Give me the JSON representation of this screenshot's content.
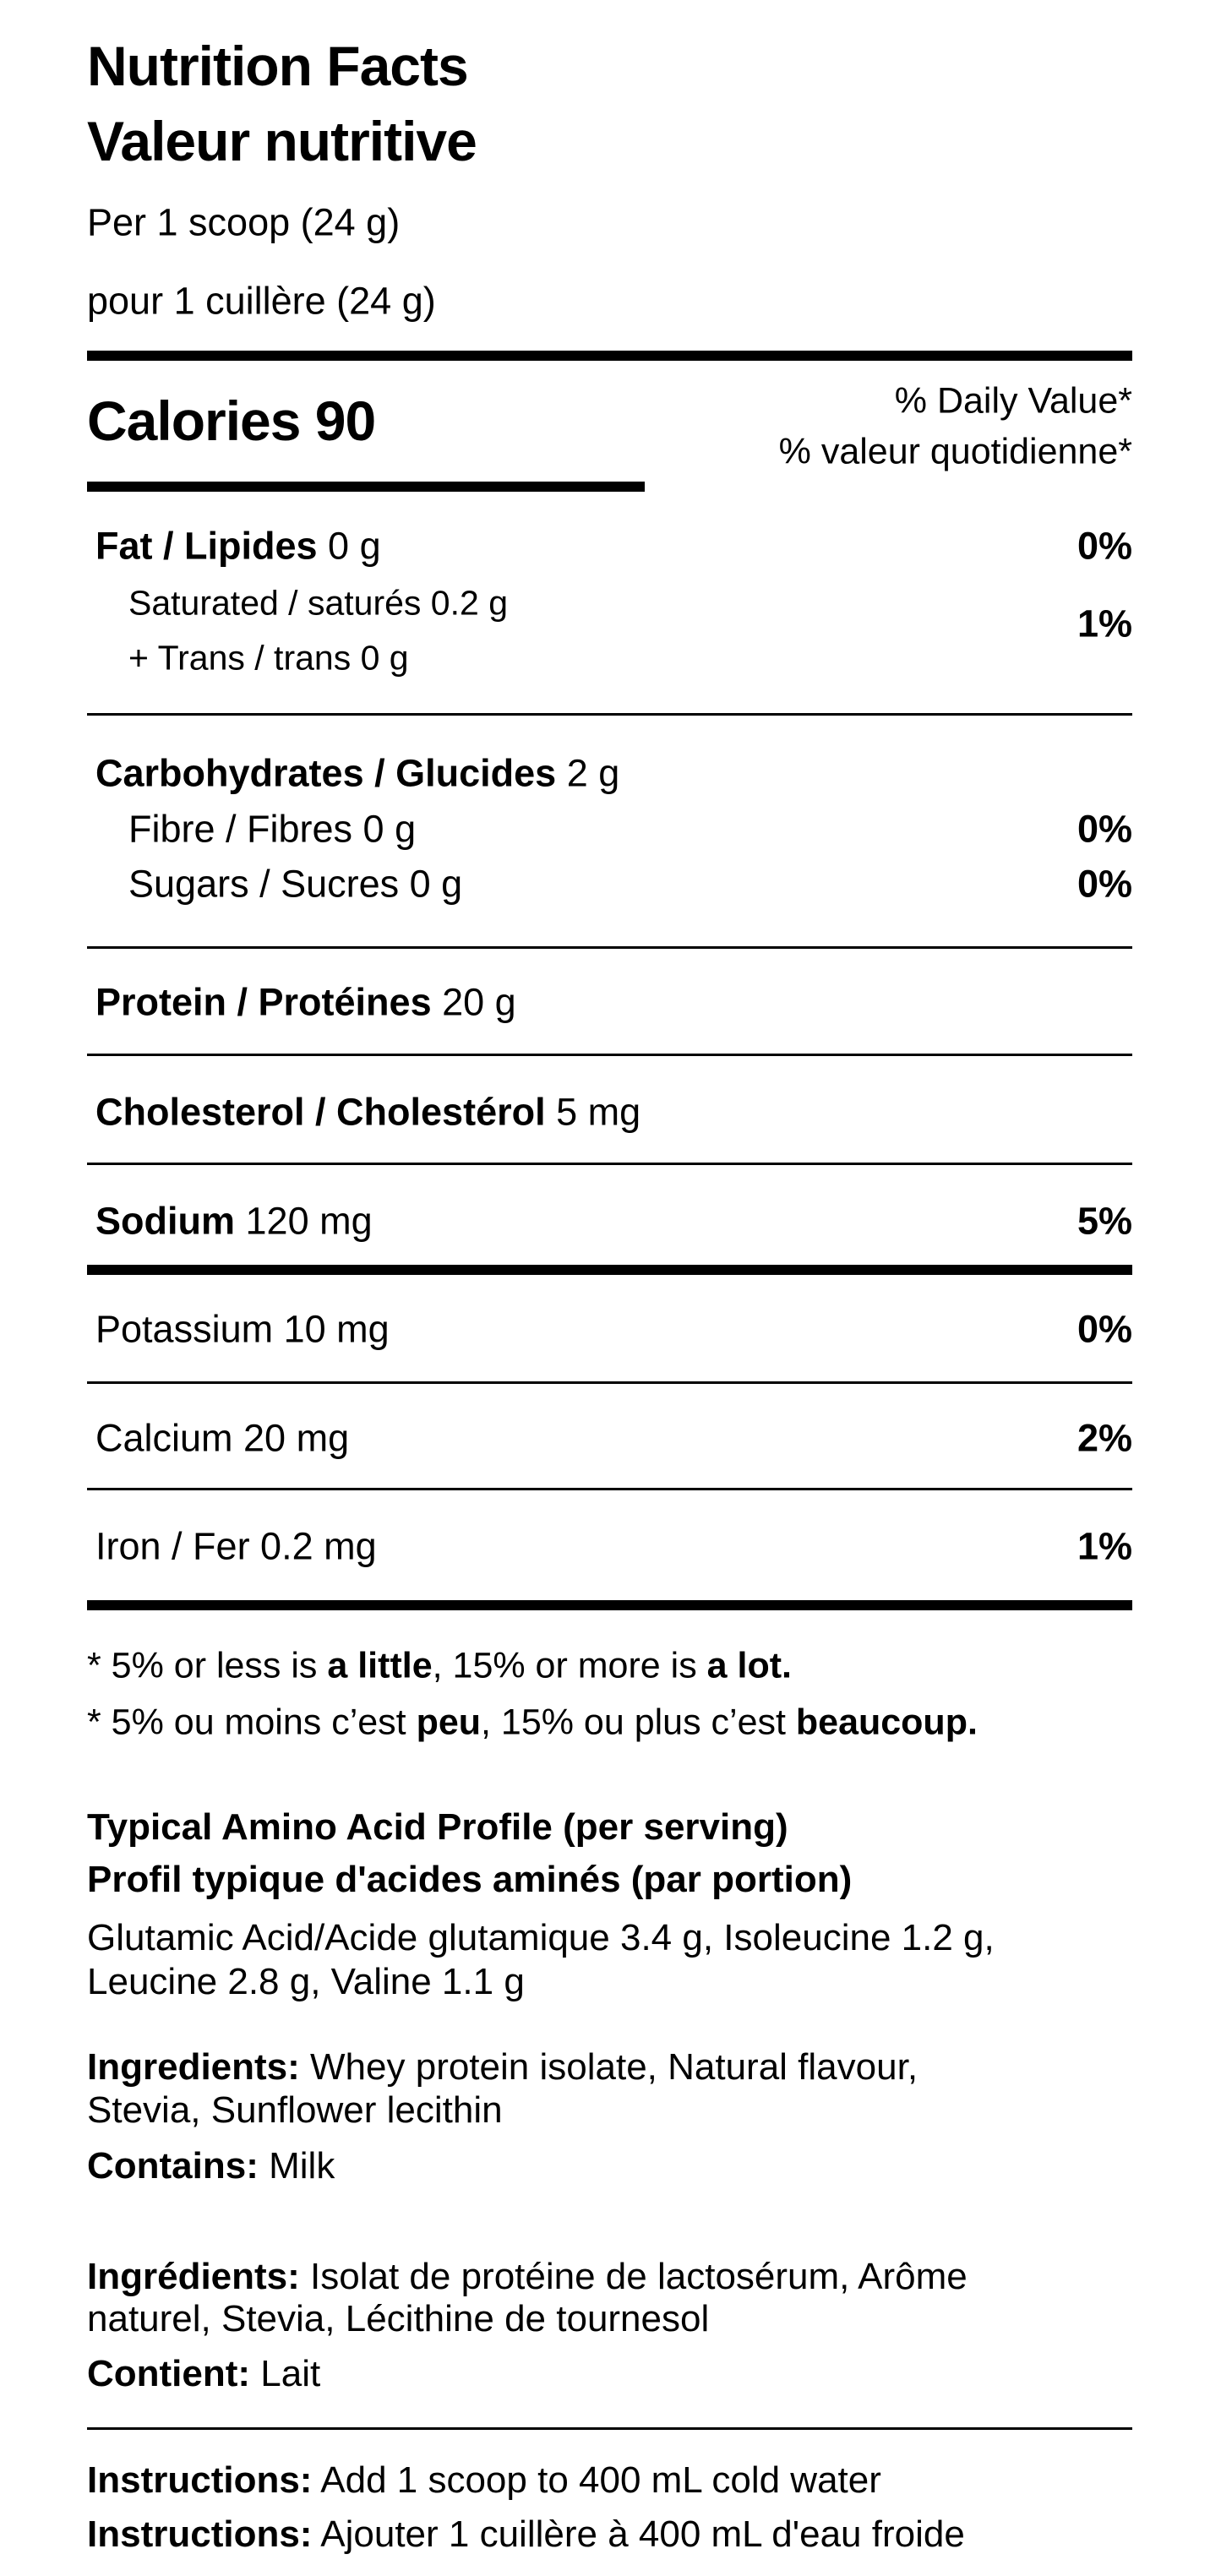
{
  "title_en": "Nutrition Facts",
  "title_fr": "Valeur nutritive",
  "serving_en": "Per 1 scoop (24 g)",
  "serving_fr": "pour 1 cuillère (24 g)",
  "calories": "Calories 90",
  "dv_en": "% Daily Value*",
  "dv_fr": "% valeur quotidienne*",
  "nutrients": {
    "fat": {
      "label": "Fat / Lipides",
      "amount": "0 g",
      "dv": "0%"
    },
    "saturated": {
      "label": "Saturated / saturés 0.2 g"
    },
    "trans": {
      "label": "+ Trans / trans 0 g"
    },
    "sat_trans_dv": "1%",
    "carbs": {
      "label": "Carbohydrates / Glucides",
      "amount": "2 g"
    },
    "fibre": {
      "label": "Fibre / Fibres 0 g",
      "dv": "0%"
    },
    "sugars": {
      "label": "Sugars / Sucres 0 g",
      "dv": "0%"
    },
    "protein": {
      "label": "Protein / Protéines",
      "amount": "20 g"
    },
    "cholesterol": {
      "label": "Cholesterol / Cholestérol",
      "amount": "5 mg"
    },
    "sodium": {
      "label": "Sodium",
      "amount": "120 mg",
      "dv": "5%"
    },
    "potassium": {
      "label": "Potassium 10 mg",
      "dv": "0%"
    },
    "calcium": {
      "label": "Calcium 20 mg",
      "dv": "2%"
    },
    "iron": {
      "label": "Iron / Fer 0.2 mg",
      "dv": "1%"
    }
  },
  "footnote_en": {
    "a": "* 5% or less is ",
    "b": "a little",
    "c": ", 15% or more is ",
    "d": "a lot."
  },
  "footnote_fr": {
    "a": "* 5% ou moins c’est ",
    "b": "peu",
    "c": ", 15% ou plus c’est ",
    "d": "beaucoup."
  },
  "amino": {
    "title_en": "Typical Amino Acid Profile (per serving)",
    "title_fr": "Profil typique d'acides aminés (par portion)",
    "lines": [
      "Glutamic Acid/Acide glutamique 3.4 g, Isoleucine 1.2 g,",
      "Leucine 2.8 g, Valine 1.1 g"
    ]
  },
  "ingredients_en": {
    "label": "Ingredients:",
    "lines": [
      " Whey protein isolate, Natural flavour,",
      "Stevia, Sunflower lecithin"
    ]
  },
  "contains_en": {
    "label": "Contains:",
    "value": " Milk"
  },
  "ingredients_fr": {
    "label": "Ingrédients:",
    "lines": [
      " Isolat de protéine de lactosérum, Arôme",
      "naturel, Stevia, Lécithine de tournesol"
    ]
  },
  "contains_fr": {
    "label": "Contient:",
    "value": " Lait"
  },
  "instructions_en": {
    "label": "Instructions:",
    "value": " Add 1 scoop to 400 mL cold water"
  },
  "instructions_fr": {
    "label": "Instructions:",
    "value": " Ajouter 1 cuillère à 400 mL d'eau froide"
  }
}
